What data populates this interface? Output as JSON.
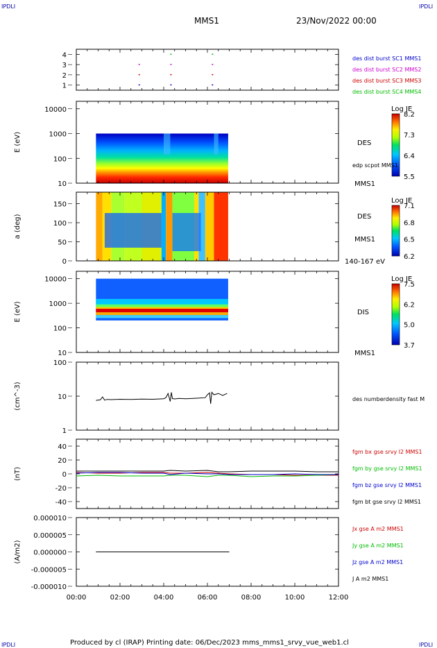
{
  "header": {
    "corner_tl": "IPDLI",
    "corner_tr": "IPDLI",
    "corner_bl": "IPDLI",
    "corner_br": "IPDLI",
    "mission": "MMS1",
    "date": "23/Nov/2022 00:00"
  },
  "footer": {
    "text": "Produced by cl (IRAP)   Printing date: 06/Dec/2023   mms_mms1_srvy_vue_web1.cl"
  },
  "time_axis": {
    "ticks": [
      "00:00",
      "02:00",
      "04:00",
      "06:00",
      "08:00",
      "10:00",
      "12:00"
    ],
    "range_hours": [
      0,
      12
    ]
  },
  "chart_data": [
    {
      "type": "scatter",
      "panel": "burst",
      "ylim": [
        0.5,
        4.5
      ],
      "yticks": [
        "1",
        "2",
        "3",
        "4"
      ],
      "legend": [
        {
          "label": "des dist burst SC1 MMS1",
          "color": "#0000cc"
        },
        {
          "label": "des dist burst SC2 MMS2",
          "color": "#cc00cc"
        },
        {
          "label": "des dist burst SC3 MMS3",
          "color": "#cc0000"
        },
        {
          "label": "des dist burst SC4 MMS4",
          "color": "#00bb00"
        }
      ],
      "series": [
        {
          "name": "des dist burst SC1 MMS1",
          "values": [
            [
              2.85,
              1
            ],
            [
              4.3,
              1
            ],
            [
              6.2,
              1
            ]
          ]
        },
        {
          "name": "des dist burst SC2 MMS2",
          "values": [
            [
              2.85,
              3
            ],
            [
              4.3,
              3
            ],
            [
              6.2,
              3
            ]
          ]
        },
        {
          "name": "des dist burst SC3 MMS3",
          "values": [
            [
              2.85,
              2
            ],
            [
              4.3,
              2
            ],
            [
              6.2,
              2
            ]
          ]
        },
        {
          "name": "des dist burst SC4 MMS4",
          "values": [
            [
              4.3,
              4
            ],
            [
              6.2,
              4
            ]
          ]
        }
      ]
    },
    {
      "type": "heatmap",
      "panel": "des_energy",
      "ylabel": "E (eV)",
      "yscale": "log",
      "ylim": [
        10,
        20000
      ],
      "yticks": [
        "10",
        "100",
        "1000",
        "10000"
      ],
      "xrange_hours": [
        0.9,
        6.95
      ],
      "energy_top": 1000,
      "right_labels": [
        "DES",
        "edp scpot MMS1",
        "MMS1"
      ],
      "colorbar": {
        "title": "Log JE",
        "ticks": [
          "8.2",
          "7.3",
          "6.4",
          "5.5"
        ],
        "range": [
          5.5,
          8.2
        ]
      }
    },
    {
      "type": "heatmap",
      "panel": "des_pitch",
      "ylabel": "a (deg)",
      "ylim": [
        0,
        180
      ],
      "yticks": [
        "0",
        "50",
        "100",
        "150"
      ],
      "xrange_hours": [
        0.9,
        6.95
      ],
      "right_labels": [
        "DES",
        "MMS1",
        "140-167 eV"
      ],
      "colorbar": {
        "title": "Log JE",
        "ticks": [
          "7.1",
          "6.8",
          "6.5",
          "6.2"
        ],
        "range": [
          6.2,
          7.1
        ]
      }
    },
    {
      "type": "heatmap",
      "panel": "dis_energy",
      "ylabel": "E (eV)",
      "yscale": "log",
      "ylim": [
        10,
        20000
      ],
      "yticks": [
        "10",
        "100",
        "1000",
        "10000"
      ],
      "xrange_hours": [
        0.9,
        6.95
      ],
      "energy_range": [
        200,
        10000
      ],
      "right_labels": [
        "DIS",
        "MMS1"
      ],
      "colorbar": {
        "title": "Log JE",
        "ticks": [
          "7.5",
          "6.2",
          "5.0",
          "3.7"
        ],
        "range": [
          3.7,
          7.5
        ]
      }
    },
    {
      "type": "line",
      "panel": "density",
      "ylabel": "(cm^-3)",
      "yscale": "log",
      "ylim": [
        1,
        100
      ],
      "yticks": [
        "1",
        "10",
        "100"
      ],
      "legend": [
        {
          "label": "des numberdensity fast M",
          "color": "#000000"
        }
      ],
      "series": [
        {
          "name": "des numberdensity fast M",
          "x": [
            0.9,
            1.1,
            1.2,
            1.3,
            1.4,
            1.6,
            2.0,
            2.5,
            3.0,
            3.5,
            4.0,
            4.1,
            4.2,
            4.3,
            4.35,
            4.4,
            4.5,
            4.7,
            5.0,
            5.5,
            5.9,
            6.0,
            6.1,
            6.15,
            6.2,
            6.3,
            6.5,
            6.7,
            6.9
          ],
          "values": [
            7.5,
            7.8,
            9.5,
            7.6,
            8.0,
            7.9,
            8.1,
            8.0,
            8.2,
            8.1,
            8.4,
            9.0,
            12.0,
            7.0,
            13.0,
            8.5,
            8.3,
            8.6,
            8.4,
            8.7,
            9.0,
            11.0,
            12.5,
            6.0,
            13.0,
            11.0,
            12.0,
            10.5,
            12.0
          ]
        }
      ]
    },
    {
      "type": "line",
      "panel": "magnetic_field",
      "ylabel": "(nT)",
      "ylim": [
        -50,
        50
      ],
      "yticks": [
        "-40",
        "-20",
        "0",
        "20",
        "40"
      ],
      "legend": [
        {
          "label": "fgm bx gse srvy l2 MMS1",
          "color": "#cc0000"
        },
        {
          "label": "fgm by gse srvy l2 MMS1",
          "color": "#00bb00"
        },
        {
          "label": "fgm bz gse srvy l2 MMS1",
          "color": "#0000cc"
        },
        {
          "label": "fgm bt gse srvy l2 MMS1",
          "color": "#000000"
        }
      ],
      "x": [
        0,
        1,
        2,
        3,
        4,
        4.3,
        5,
        6,
        6.5,
        7,
        8,
        9,
        10,
        11,
        12
      ],
      "series": [
        {
          "name": "fgm bx gse srvy l2 MMS1",
          "values": [
            2,
            1,
            1,
            2,
            2,
            1,
            1,
            2,
            1,
            0,
            -1,
            -1,
            -2,
            -2,
            -2
          ]
        },
        {
          "name": "fgm by gse srvy l2 MMS1",
          "values": [
            -3,
            -2,
            -3,
            -3,
            -3,
            -2,
            -2,
            -4,
            -2,
            -2,
            -4,
            -3,
            -3,
            -2,
            -1
          ]
        },
        {
          "name": "fgm bz gse srvy l2 MMS1",
          "values": [
            1,
            2,
            2,
            1,
            1,
            -1,
            1,
            0,
            0,
            -1,
            -1,
            -1,
            0,
            -1,
            -1
          ]
        },
        {
          "name": "fgm bt gse srvy l2 MMS1",
          "values": [
            4,
            4,
            4,
            4,
            4,
            5,
            4,
            5,
            3,
            3,
            4,
            4,
            4,
            3,
            3
          ]
        }
      ]
    },
    {
      "type": "line",
      "panel": "current_density",
      "ylabel": "(A/m2)",
      "ylim": [
        -1e-05,
        1e-05
      ],
      "yticks": [
        "-0.000010",
        "-0.000005",
        "0.000000",
        "0.000005",
        "0.000010"
      ],
      "legend": [
        {
          "label": "Jx gse A m2 MMS1",
          "color": "#cc0000"
        },
        {
          "label": "Jy gse A m2 MMS1",
          "color": "#00bb00"
        },
        {
          "label": "Jz gse A m2 MMS1",
          "color": "#0000cc"
        },
        {
          "label": "J A m2 MMS1",
          "color": "#000000"
        }
      ],
      "x": [
        0.9,
        2,
        3,
        4,
        5,
        6,
        7
      ],
      "series": [
        {
          "name": "J A m2 MMS1",
          "values": [
            0,
            0,
            0,
            0,
            0,
            0,
            0
          ]
        }
      ]
    }
  ]
}
